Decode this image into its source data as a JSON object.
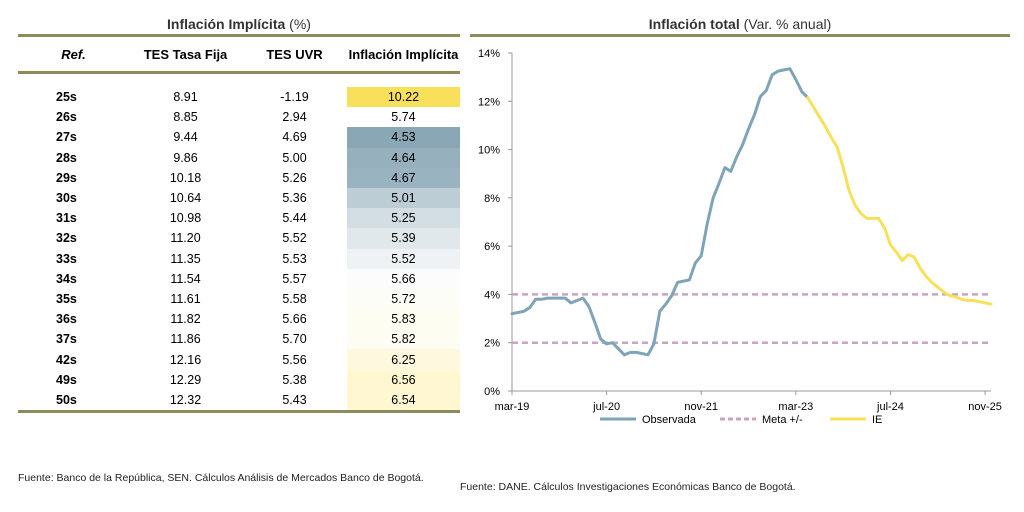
{
  "table": {
    "title_bold": "Inflación Implícita",
    "title_rest": " (%)",
    "headers": {
      "ref": "Ref.",
      "tes_fija": "TES Tasa Fija",
      "tes_uvr": "TES UVR",
      "inflacion": "Inflación Implícita"
    },
    "rows": [
      {
        "ref": "25s",
        "tes_fija": "8.91",
        "tes_uvr": "-1.19",
        "inflacion": "10.22",
        "bg": "#f9e05a"
      },
      {
        "ref": "26s",
        "tes_fija": "8.85",
        "tes_uvr": "2.94",
        "inflacion": "5.74",
        "bg": "#ffffff"
      },
      {
        "ref": "27s",
        "tes_fija": "9.44",
        "tes_uvr": "4.69",
        "inflacion": "4.53",
        "bg": "#8aa7b6"
      },
      {
        "ref": "28s",
        "tes_fija": "9.86",
        "tes_uvr": "5.00",
        "inflacion": "4.64",
        "bg": "#97b0be"
      },
      {
        "ref": "29s",
        "tes_fija": "10.18",
        "tes_uvr": "5.26",
        "inflacion": "4.67",
        "bg": "#9ab3c0"
      },
      {
        "ref": "30s",
        "tes_fija": "10.64",
        "tes_uvr": "5.36",
        "inflacion": "5.01",
        "bg": "#bccdd6"
      },
      {
        "ref": "31s",
        "tes_fija": "10.98",
        "tes_uvr": "5.44",
        "inflacion": "5.25",
        "bg": "#d3dee4"
      },
      {
        "ref": "32s",
        "tes_fija": "11.20",
        "tes_uvr": "5.52",
        "inflacion": "5.39",
        "bg": "#e1e8ec"
      },
      {
        "ref": "33s",
        "tes_fija": "11.35",
        "tes_uvr": "5.53",
        "inflacion": "5.52",
        "bg": "#eef2f4"
      },
      {
        "ref": "34s",
        "tes_fija": "11.54",
        "tes_uvr": "5.57",
        "inflacion": "5.66",
        "bg": "#fbfcfb"
      },
      {
        "ref": "35s",
        "tes_fija": "11.61",
        "tes_uvr": "5.58",
        "inflacion": "5.72",
        "bg": "#fdfdf8"
      },
      {
        "ref": "36s",
        "tes_fija": "11.82",
        "tes_uvr": "5.66",
        "inflacion": "5.83",
        "bg": "#fefdf2"
      },
      {
        "ref": "37s",
        "tes_fija": "11.86",
        "tes_uvr": "5.70",
        "inflacion": "5.82",
        "bg": "#fefdf3"
      },
      {
        "ref": "42s",
        "tes_fija": "12.16",
        "tes_uvr": "5.56",
        "inflacion": "6.25",
        "bg": "#fef9de"
      },
      {
        "ref": "49s",
        "tes_fija": "12.29",
        "tes_uvr": "5.38",
        "inflacion": "6.56",
        "bg": "#fef7d0"
      },
      {
        "ref": "50s",
        "tes_fija": "12.32",
        "tes_uvr": "5.43",
        "inflacion": "6.54",
        "bg": "#fef7d1"
      }
    ],
    "source": "Fuente: Banco de la República, SEN. Cálculos Análisis de Mercados Banco de Bogotá."
  },
  "chart_data": {
    "type": "line",
    "title": "Inflación total",
    "title_suffix": " (Var. % anual)",
    "ylim": [
      0,
      14
    ],
    "y_ticks": [
      "0%",
      "2%",
      "4%",
      "6%",
      "8%",
      "10%",
      "12%",
      "14%"
    ],
    "x_tick_labels": [
      "mar-19",
      "jul-20",
      "nov-21",
      "mar-23",
      "jul-24",
      "nov-25"
    ],
    "x_tick_months": [
      0,
      16,
      32,
      48,
      64,
      80
    ],
    "x_range_months": [
      0,
      81
    ],
    "series": [
      {
        "name": "Observada",
        "color": "#7fa4b7",
        "points": [
          [
            0,
            3.2
          ],
          [
            1,
            3.25
          ],
          [
            2,
            3.3
          ],
          [
            3,
            3.45
          ],
          [
            4,
            3.8
          ],
          [
            5,
            3.8
          ],
          [
            6,
            3.85
          ],
          [
            7,
            3.85
          ],
          [
            8,
            3.85
          ],
          [
            9,
            3.85
          ],
          [
            10,
            3.65
          ],
          [
            11,
            3.75
          ],
          [
            12,
            3.85
          ],
          [
            13,
            3.5
          ],
          [
            14,
            2.85
          ],
          [
            15,
            2.15
          ],
          [
            16,
            1.95
          ],
          [
            17,
            2.0
          ],
          [
            18,
            1.75
          ],
          [
            19,
            1.5
          ],
          [
            20,
            1.6
          ],
          [
            21,
            1.6
          ],
          [
            22,
            1.55
          ],
          [
            23,
            1.5
          ],
          [
            24,
            1.95
          ],
          [
            25,
            3.3
          ],
          [
            26,
            3.6
          ],
          [
            27,
            3.95
          ],
          [
            28,
            4.5
          ],
          [
            29,
            4.55
          ],
          [
            30,
            4.6
          ],
          [
            31,
            5.3
          ],
          [
            32,
            5.6
          ],
          [
            33,
            6.9
          ],
          [
            34,
            8.0
          ],
          [
            35,
            8.6
          ],
          [
            36,
            9.25
          ],
          [
            37,
            9.1
          ],
          [
            38,
            9.7
          ],
          [
            39,
            10.2
          ],
          [
            40,
            10.85
          ],
          [
            41,
            11.45
          ],
          [
            42,
            12.2
          ],
          [
            43,
            12.45
          ],
          [
            44,
            13.1
          ],
          [
            45,
            13.25
          ],
          [
            46,
            13.3
          ],
          [
            47,
            13.35
          ],
          [
            48,
            12.9
          ],
          [
            49,
            12.4
          ],
          [
            50,
            12.15
          ]
        ]
      },
      {
        "name": "IE",
        "color": "#f7e15a",
        "points": [
          [
            50,
            12.15
          ],
          [
            51,
            11.75
          ],
          [
            52,
            11.35
          ],
          [
            53,
            10.95
          ],
          [
            54,
            10.5
          ],
          [
            55,
            10.1
          ],
          [
            56,
            9.25
          ],
          [
            57,
            8.3
          ],
          [
            58,
            7.7
          ],
          [
            59,
            7.35
          ],
          [
            60,
            7.15
          ],
          [
            61,
            7.15
          ],
          [
            62,
            7.15
          ],
          [
            63,
            6.75
          ],
          [
            64,
            6.05
          ],
          [
            65,
            5.75
          ],
          [
            66,
            5.4
          ],
          [
            67,
            5.65
          ],
          [
            68,
            5.55
          ],
          [
            69,
            5.1
          ],
          [
            70,
            4.75
          ],
          [
            71,
            4.5
          ],
          [
            72,
            4.3
          ],
          [
            73,
            4.1
          ],
          [
            74,
            3.95
          ],
          [
            75,
            3.9
          ],
          [
            76,
            3.8
          ],
          [
            77,
            3.75
          ],
          [
            78,
            3.75
          ],
          [
            79,
            3.7
          ],
          [
            80,
            3.65
          ],
          [
            81,
            3.6
          ]
        ]
      }
    ],
    "reference_lines": [
      {
        "name": "Meta +/-",
        "values": [
          2,
          4
        ],
        "color": "#c8a5c0",
        "style": "dashed"
      }
    ],
    "legend": [
      "Observada",
      "Meta +/-",
      "IE"
    ],
    "legend_position": "bottom"
  },
  "chart_source": "Fuente: DANE. Cálculos Investigaciones Económicas Banco de Bogotá."
}
